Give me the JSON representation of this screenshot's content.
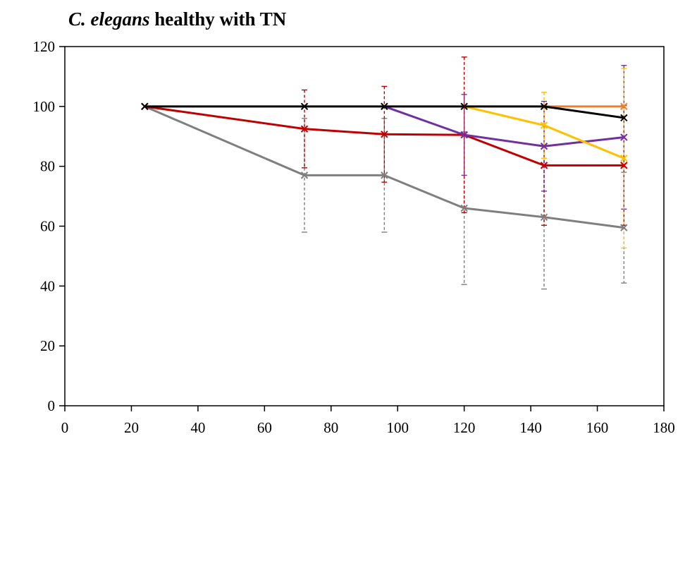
{
  "chart_data": {
    "type": "line",
    "title_italic": "C. elegans",
    "title_rest": " healthy with TN",
    "xlabel": "",
    "ylabel": "",
    "xlim": [
      0,
      180
    ],
    "ylim": [
      0,
      120
    ],
    "xticks": [
      0,
      20,
      40,
      60,
      80,
      100,
      120,
      140,
      160,
      180
    ],
    "yticks": [
      0,
      20,
      40,
      60,
      80,
      100,
      120
    ],
    "grid": false,
    "legend": "none",
    "series": [
      {
        "color": "#7f7f7f",
        "x": [
          24,
          72,
          96,
          120,
          144,
          168
        ],
        "y": [
          100,
          77,
          77,
          66,
          63,
          59.5
        ],
        "err": [
          0,
          19,
          19,
          25.5,
          24,
          18.5
        ]
      },
      {
        "color": "#c00000",
        "x": [
          24,
          72,
          96,
          120,
          144,
          168
        ],
        "y": [
          100,
          92.5,
          90.7,
          90.5,
          80.3,
          80.3
        ],
        "err": [
          0,
          13,
          16,
          26,
          20,
          20
        ]
      },
      {
        "color": "#7030a0",
        "x": [
          96,
          120,
          144,
          168
        ],
        "y": [
          100,
          90.5,
          86.7,
          89.7
        ],
        "err": [
          0,
          13.5,
          15,
          24
        ]
      },
      {
        "color": "#ffc000",
        "x": [
          120,
          144,
          168
        ],
        "y": [
          100,
          93.7,
          82.7
        ],
        "err": [
          0,
          11,
          30
        ]
      },
      {
        "color": "#ed7d31",
        "x": [
          144,
          168
        ],
        "y": [
          100,
          100
        ],
        "err": [
          0,
          0
        ]
      },
      {
        "color": "#000000",
        "x": [
          24,
          72,
          96,
          120,
          144,
          168
        ],
        "y": [
          100,
          100,
          100,
          100,
          100,
          96.2
        ],
        "err": [
          0,
          0,
          0,
          0,
          0,
          0
        ]
      }
    ]
  }
}
